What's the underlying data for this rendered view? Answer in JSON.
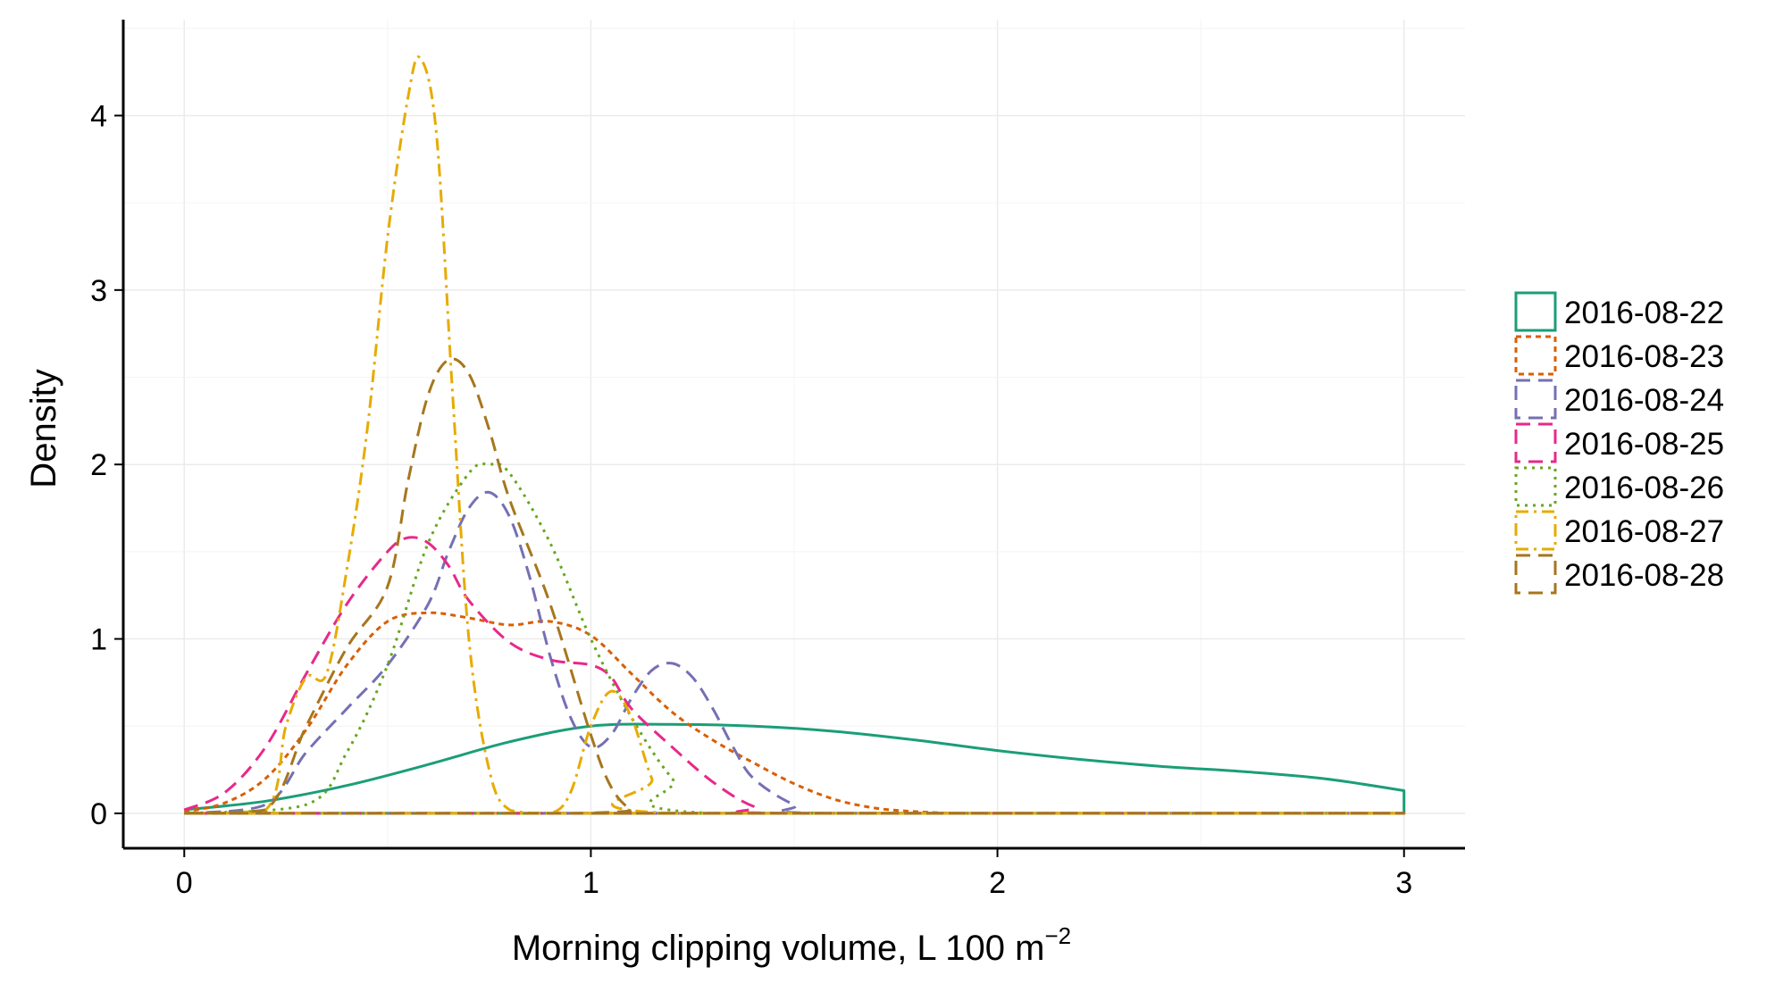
{
  "chart_data": {
    "type": "line",
    "title": "",
    "xlabel": "Morning clipping volume, L 100 m",
    "xlabel_superscript": "−2",
    "ylabel": "Density",
    "xlim": [
      -0.15,
      3.15
    ],
    "ylim": [
      -0.2,
      4.55
    ],
    "xticks": [
      0,
      1,
      2,
      3
    ],
    "xtick_labels": [
      "0",
      "1",
      "2",
      "3"
    ],
    "yticks": [
      0,
      1,
      2,
      3,
      4
    ],
    "ytick_labels": [
      "0",
      "1",
      "2",
      "3",
      "4"
    ],
    "grid": true,
    "legend_position": "right",
    "series": [
      {
        "name": "2016-08-22",
        "color": "#1b9e77",
        "dash": "solid",
        "x": [
          0,
          0.2,
          0.4,
          0.6,
          0.8,
          1.0,
          1.2,
          1.4,
          1.6,
          1.8,
          2.0,
          2.2,
          2.4,
          2.6,
          2.8,
          3.0
        ],
        "y": [
          0.02,
          0.07,
          0.16,
          0.28,
          0.41,
          0.5,
          0.51,
          0.5,
          0.47,
          0.42,
          0.36,
          0.31,
          0.27,
          0.24,
          0.2,
          0.13
        ]
      },
      {
        "name": "2016-08-23",
        "color": "#d95f02",
        "dash": "short",
        "x": [
          0,
          0.1,
          0.2,
          0.3,
          0.4,
          0.5,
          0.6,
          0.7,
          0.8,
          0.9,
          1.0,
          1.1,
          1.2,
          1.3,
          1.4,
          1.5,
          1.6,
          1.7,
          1.8,
          1.9,
          2.0,
          3.0
        ],
        "y": [
          0.01,
          0.06,
          0.2,
          0.48,
          0.85,
          1.1,
          1.15,
          1.12,
          1.08,
          1.1,
          1.02,
          0.8,
          0.58,
          0.42,
          0.29,
          0.17,
          0.08,
          0.03,
          0.01,
          0,
          0,
          0
        ]
      },
      {
        "name": "2016-08-24",
        "color": "#7570b3",
        "dash": "long",
        "x": [
          0,
          0.2,
          0.3,
          0.4,
          0.5,
          0.6,
          0.65,
          0.7,
          0.75,
          0.8,
          0.85,
          0.9,
          0.95,
          1.0,
          1.05,
          1.1,
          1.15,
          1.2,
          1.25,
          1.3,
          1.35,
          1.4,
          1.5,
          1.6,
          3.0
        ],
        "y": [
          0,
          0.05,
          0.35,
          0.6,
          0.85,
          1.2,
          1.5,
          1.75,
          1.84,
          1.7,
          1.35,
          0.9,
          0.55,
          0.38,
          0.45,
          0.66,
          0.82,
          0.86,
          0.78,
          0.6,
          0.38,
          0.2,
          0.05,
          0,
          0
        ]
      },
      {
        "name": "2016-08-25",
        "color": "#e7298a",
        "dash": "long",
        "x": [
          0,
          0.1,
          0.2,
          0.3,
          0.4,
          0.5,
          0.55,
          0.6,
          0.65,
          0.7,
          0.8,
          0.9,
          1.0,
          1.05,
          1.1,
          1.2,
          1.3,
          1.4,
          1.5,
          3.0
        ],
        "y": [
          0.02,
          0.12,
          0.38,
          0.8,
          1.2,
          1.5,
          1.58,
          1.55,
          1.42,
          1.22,
          0.98,
          0.88,
          0.85,
          0.78,
          0.6,
          0.38,
          0.18,
          0.04,
          0,
          0
        ]
      },
      {
        "name": "2016-08-26",
        "color": "#66a61e",
        "dash": "dotted",
        "x": [
          0,
          0.3,
          0.4,
          0.5,
          0.6,
          0.7,
          0.75,
          0.8,
          0.9,
          1.0,
          1.1,
          1.2,
          1.3,
          3.0
        ],
        "y": [
          0,
          0.05,
          0.35,
          0.85,
          1.55,
          1.95,
          2.0,
          1.95,
          1.55,
          1.0,
          0.55,
          0.2,
          0,
          0
        ]
      },
      {
        "name": "2016-08-27",
        "color": "#e6ab02",
        "dash": "dashdot",
        "x": [
          0,
          0.2,
          0.25,
          0.3,
          0.35,
          0.4,
          0.45,
          0.5,
          0.55,
          0.58,
          0.62,
          0.66,
          0.7,
          0.75,
          0.8,
          0.9,
          0.95,
          1.0,
          1.05,
          1.1,
          1.15,
          1.2,
          3.0
        ],
        "y": [
          0,
          0.02,
          0.5,
          0.78,
          0.8,
          1.4,
          2.2,
          3.3,
          4.1,
          4.33,
          3.9,
          2.4,
          1.0,
          0.25,
          0.02,
          0,
          0.12,
          0.5,
          0.7,
          0.55,
          0.2,
          0,
          0
        ]
      },
      {
        "name": "2016-08-28",
        "color": "#a6761d",
        "dash": "long",
        "x": [
          0,
          0.2,
          0.3,
          0.4,
          0.5,
          0.55,
          0.6,
          0.65,
          0.7,
          0.75,
          0.8,
          0.9,
          1.0,
          1.05,
          1.1,
          1.15,
          3.0
        ],
        "y": [
          0,
          0.02,
          0.5,
          0.95,
          1.3,
          1.9,
          2.4,
          2.6,
          2.52,
          2.2,
          1.8,
          1.2,
          0.45,
          0.15,
          0.02,
          0,
          0
        ]
      }
    ]
  }
}
